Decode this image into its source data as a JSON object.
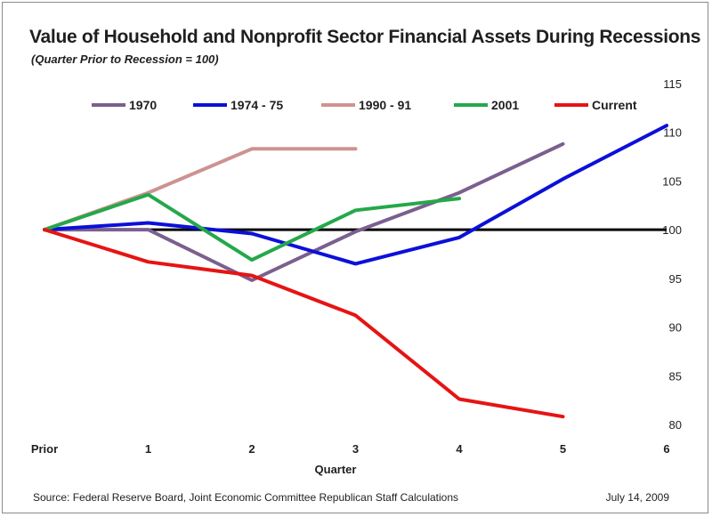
{
  "chart_data": {
    "type": "line",
    "title": "Value of Household and Nonprofit Sector Financial Assets During Recessions",
    "subtitle": "(Quarter Prior to Recession = 100)",
    "xlabel": "Quarter",
    "ylabel": "",
    "categories": [
      "Prior",
      "1",
      "2",
      "3",
      "4",
      "5",
      "6"
    ],
    "ylim": [
      80,
      115
    ],
    "yticks": [
      80,
      85,
      90,
      95,
      100,
      105,
      110,
      115
    ],
    "y_axis_side": "right",
    "reference_line": 100,
    "legend_position": "top",
    "series": [
      {
        "name": "1970",
        "color": "#7b5f8f",
        "values": [
          100,
          100,
          94.8,
          99.8,
          103.8,
          108.8,
          null
        ]
      },
      {
        "name": "1974 - 75",
        "color": "#0b10d8",
        "values": [
          100,
          100.7,
          99.6,
          96.5,
          99.2,
          105.2,
          110.7
        ]
      },
      {
        "name": "1990 - 91",
        "color": "#cd9391",
        "values": [
          100,
          103.8,
          108.3,
          108.3,
          null,
          null,
          null
        ]
      },
      {
        "name": "2001",
        "color": "#24a84a",
        "values": [
          100,
          103.6,
          96.9,
          102,
          103.2,
          null,
          null
        ]
      },
      {
        "name": "Current",
        "color": "#e61414",
        "values": [
          100,
          96.7,
          95.3,
          91.2,
          82.6,
          80.8,
          null
        ]
      }
    ]
  },
  "footer": {
    "source": "Source:  Federal Reserve Board, Joint Economic Committee Republican Staff Calculations",
    "date": "July 14, 2009"
  }
}
